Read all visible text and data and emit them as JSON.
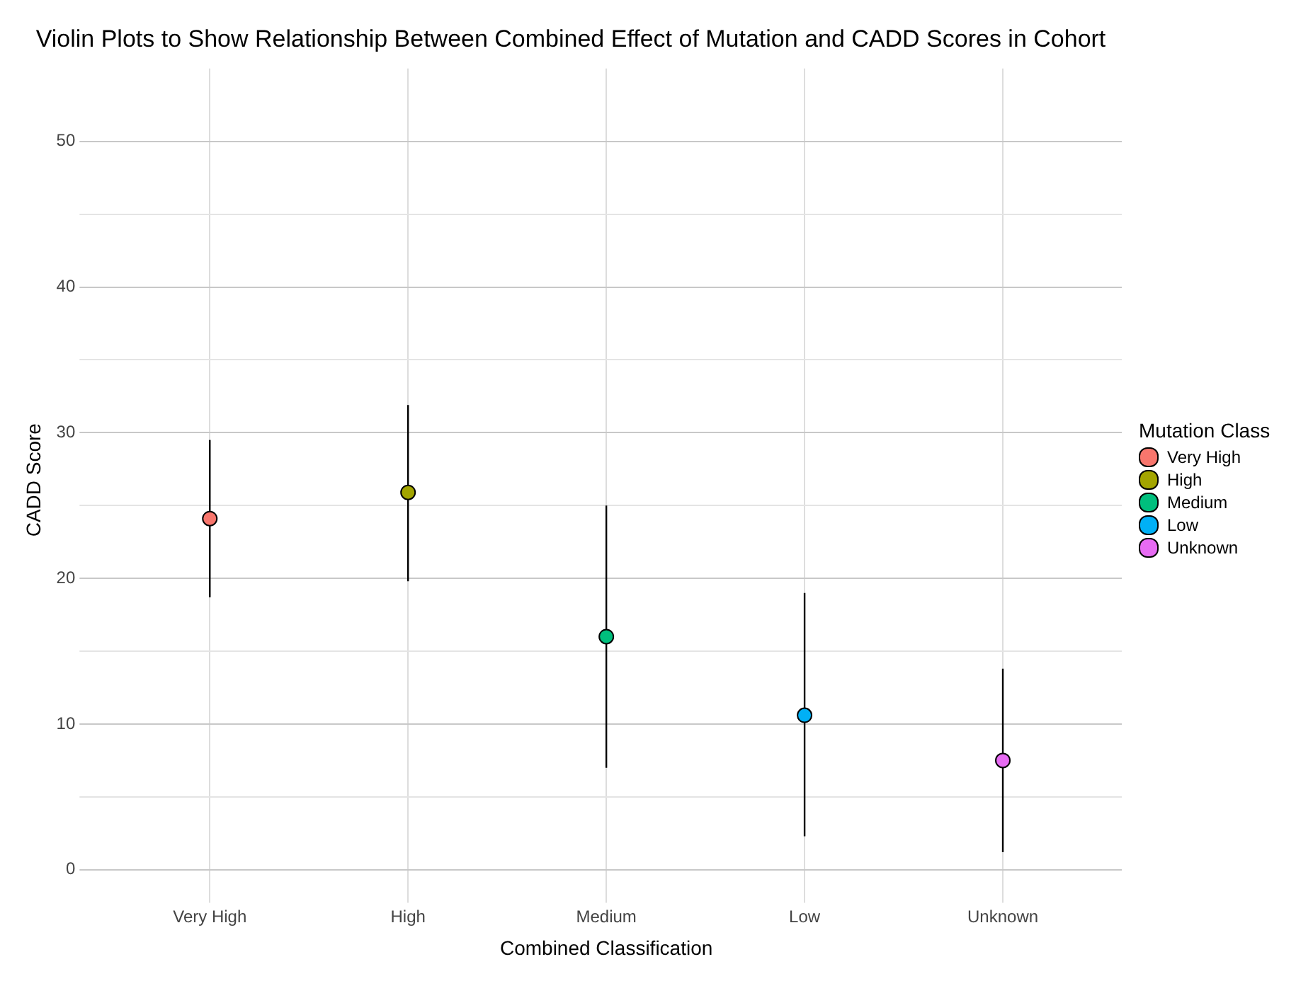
{
  "chart_data": {
    "type": "scatter",
    "title": "Violin Plots to Show Relationship Between Combined Effect of Mutation and CADD Scores in Cohort",
    "xlabel": "Combined Classification",
    "ylabel": "CADD Score",
    "legend_title": "Mutation Class",
    "categories": [
      "Very High",
      "High",
      "Medium",
      "Low",
      "Unknown"
    ],
    "series": [
      {
        "name": "Very High",
        "color": "#f8766d",
        "x": [
          "Very High"
        ],
        "values": [
          24.1
        ],
        "errors": [
          [
            18.7,
            29.5
          ]
        ]
      },
      {
        "name": "High",
        "color": "#a3a500",
        "x": [
          "High"
        ],
        "values": [
          25.9
        ],
        "errors": [
          [
            19.8,
            31.9
          ]
        ]
      },
      {
        "name": "Medium",
        "color": "#00bf7d",
        "x": [
          "Medium"
        ],
        "values": [
          16.0
        ],
        "errors": [
          [
            7.0,
            25.0
          ]
        ]
      },
      {
        "name": "Low",
        "color": "#00b0f6",
        "x": [
          "Low"
        ],
        "values": [
          10.6
        ],
        "errors": [
          [
            2.3,
            19.0
          ]
        ]
      },
      {
        "name": "Unknown",
        "color": "#e76bf3",
        "x": [
          "Unknown"
        ],
        "values": [
          7.5
        ],
        "errors": [
          [
            1.2,
            13.8
          ]
        ]
      }
    ],
    "ylim": [
      -1.5,
      55
    ],
    "yticks": [
      0,
      {
        "value": 5,
        "label": null
      },
      10,
      {
        "value": 15,
        "label": null
      },
      20,
      {
        "value": 25,
        "label": null
      },
      30,
      {
        "value": 35,
        "label": null
      },
      40,
      {
        "value": 45,
        "label": null
      },
      50
    ],
    "grid": true,
    "legend": "right",
    "marker": "circle"
  }
}
